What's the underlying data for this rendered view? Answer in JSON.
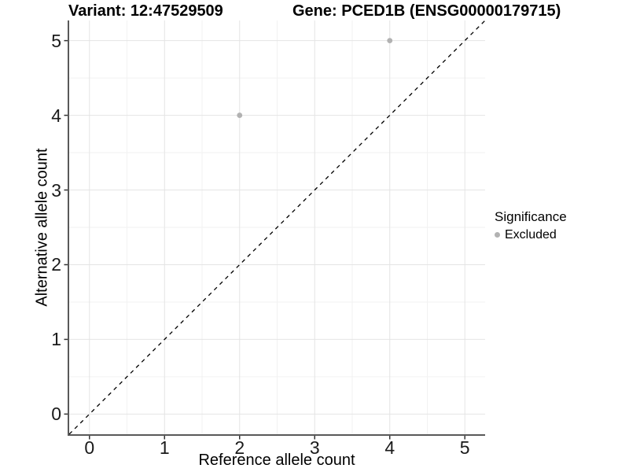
{
  "titles": {
    "variant": "Variant: 12:47529509",
    "gene": "Gene: PCED1B (ENSG00000179715)"
  },
  "chart_data": {
    "type": "scatter",
    "xlabel": "Reference allele count",
    "ylabel": "Alternative allele count",
    "xlim": [
      -0.27,
      5.27
    ],
    "ylim": [
      -0.27,
      5.27
    ],
    "xticks": [
      0,
      1,
      2,
      3,
      4,
      5
    ],
    "yticks": [
      0,
      1,
      2,
      3,
      4,
      5
    ],
    "minor_xticks": [
      0.5,
      1.5,
      2.5,
      3.5,
      4.5
    ],
    "minor_yticks": [
      0.5,
      1.5,
      2.5,
      3.5,
      4.5
    ],
    "grid": true,
    "series": [
      {
        "name": "Excluded",
        "color": "#b2b2b2",
        "points": [
          {
            "x": 2,
            "y": 4
          },
          {
            "x": 4,
            "y": 5
          }
        ]
      }
    ],
    "reference_line": {
      "slope": 1,
      "intercept": 0,
      "style": "dashed",
      "color": "#000000"
    },
    "legend": {
      "title": "Significance",
      "position": "right",
      "entries": [
        {
          "label": "Excluded",
          "color": "#b2b2b2"
        }
      ]
    }
  },
  "colors": {
    "background": "#ffffff",
    "grid_major": "#e4e4e4",
    "grid_minor": "#f2f2f2",
    "axis_line": "#595959",
    "tick_mark": "#333333",
    "tick_text": "#1a1a1a"
  }
}
